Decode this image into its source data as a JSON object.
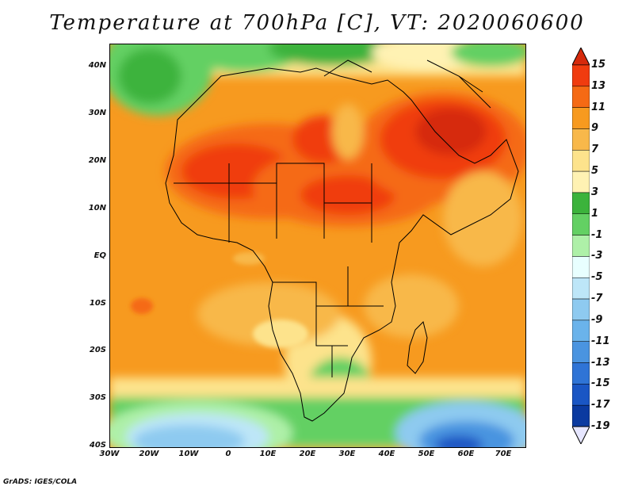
{
  "title": "Temperature at 700hPa [C], VT: 2020060600",
  "credit": "GrADS: IGES/COLA",
  "map": {
    "lat_labels": [
      "40N",
      "30N",
      "20N",
      "10N",
      "EQ",
      "10S",
      "20S",
      "30S",
      "40S"
    ],
    "lon_labels": [
      "30W",
      "20W",
      "10W",
      "0",
      "10E",
      "20E",
      "30E",
      "40E",
      "50E",
      "60E",
      "70E"
    ],
    "lat_range": [
      -40,
      45
    ],
    "lon_range": [
      -30,
      75
    ]
  },
  "colorbar": {
    "labels": [
      "15",
      "13",
      "11",
      "9",
      "7",
      "5",
      "3",
      "1",
      "-1",
      "-3",
      "-5",
      "-7",
      "-9",
      "-11",
      "-13",
      "-15",
      "-17",
      "-19"
    ],
    "colors": [
      "#d62a0c",
      "#f03c0f",
      "#f56a14",
      "#f79a1f",
      "#f8b84a",
      "#fde38c",
      "#fff2b3",
      "#3cb33c",
      "#63d063",
      "#aef0a8",
      "#e8ffff",
      "#bde6f8",
      "#8ecaf0",
      "#6ab3eb",
      "#4a94e0",
      "#2f74d6",
      "#1a56c4",
      "#0b3aa0",
      "#061e6e"
    ]
  }
}
